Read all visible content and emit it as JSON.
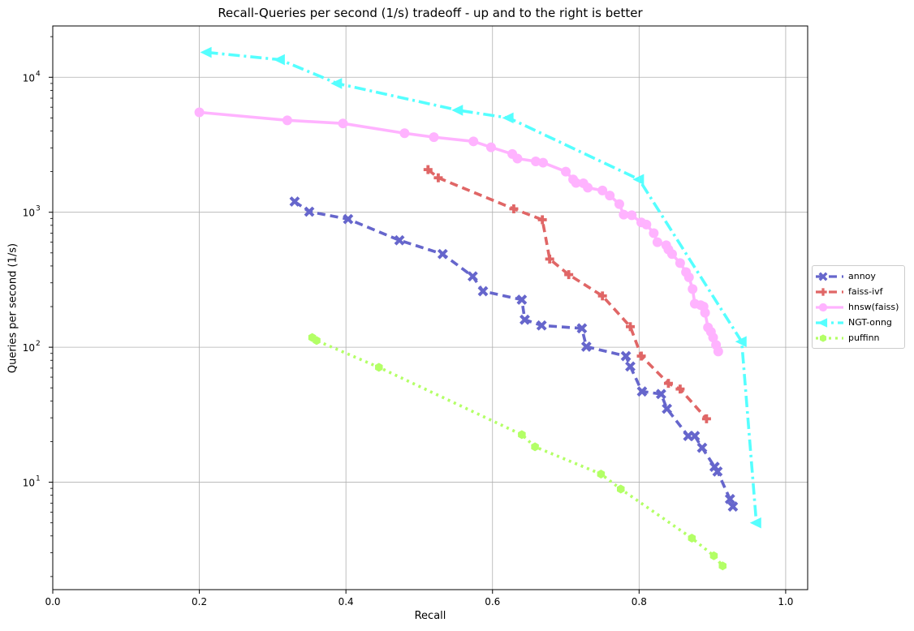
{
  "chart_data": {
    "type": "line",
    "title": "Recall-Queries per second (1/s) tradeoff - up and to the right is better",
    "xlabel": "Recall",
    "ylabel": "Queries per second (1/s)",
    "xlim": [
      0.0,
      1.03
    ],
    "ylim": [
      1.6,
      24000
    ],
    "yscale": "log",
    "grid": true,
    "legend_position": "right",
    "x_ticks": [
      {
        "value": 0.0,
        "label": "0.0"
      },
      {
        "value": 0.2,
        "label": "0.2"
      },
      {
        "value": 0.4,
        "label": "0.4"
      },
      {
        "value": 0.6,
        "label": "0.6"
      },
      {
        "value": 0.8,
        "label": "0.8"
      },
      {
        "value": 1.0,
        "label": "1.0"
      }
    ],
    "y_ticks": [
      {
        "value": 10,
        "base": "10",
        "exp": "1"
      },
      {
        "value": 100,
        "base": "10",
        "exp": "2"
      },
      {
        "value": 1000,
        "base": "10",
        "exp": "3"
      },
      {
        "value": 10000,
        "base": "10",
        "exp": "4"
      }
    ],
    "series": [
      {
        "name": "annoy",
        "color": "#6666cc",
        "marker": "x",
        "dash": "10,6",
        "points": [
          [
            0.33,
            1200
          ],
          [
            0.35,
            1010
          ],
          [
            0.403,
            890
          ],
          [
            0.473,
            620
          ],
          [
            0.532,
            490
          ],
          [
            0.573,
            335
          ],
          [
            0.587,
            260
          ],
          [
            0.64,
            225
          ],
          [
            0.644,
            160
          ],
          [
            0.667,
            145
          ],
          [
            0.722,
            138
          ],
          [
            0.728,
            101
          ],
          [
            0.782,
            86
          ],
          [
            0.788,
            72
          ],
          [
            0.804,
            47
          ],
          [
            0.83,
            45
          ],
          [
            0.838,
            35
          ],
          [
            0.867,
            22
          ],
          [
            0.876,
            22
          ],
          [
            0.886,
            18
          ],
          [
            0.903,
            13
          ],
          [
            0.907,
            12
          ],
          [
            0.924,
            7.5
          ],
          [
            0.928,
            6.6
          ]
        ]
      },
      {
        "name": "faiss-ivf",
        "color": "#e06666",
        "marker": "plus",
        "dash": "10,6",
        "points": [
          [
            0.512,
            2070
          ],
          [
            0.526,
            1800
          ],
          [
            0.629,
            1060
          ],
          [
            0.668,
            880
          ],
          [
            0.678,
            450
          ],
          [
            0.704,
            345
          ],
          [
            0.75,
            240
          ],
          [
            0.788,
            142
          ],
          [
            0.803,
            86
          ],
          [
            0.84,
            54
          ],
          [
            0.856,
            49
          ],
          [
            0.892,
            29.5
          ]
        ]
      },
      {
        "name": "hnsw(faiss)",
        "color": "#ffb3ff",
        "marker": "circle",
        "dash": "",
        "points": [
          [
            0.2,
            5500
          ],
          [
            0.32,
            4800
          ],
          [
            0.396,
            4550
          ],
          [
            0.48,
            3850
          ],
          [
            0.52,
            3600
          ],
          [
            0.574,
            3350
          ],
          [
            0.598,
            3030
          ],
          [
            0.627,
            2700
          ],
          [
            0.634,
            2500
          ],
          [
            0.659,
            2380
          ],
          [
            0.669,
            2330
          ],
          [
            0.7,
            2000
          ],
          [
            0.71,
            1750
          ],
          [
            0.714,
            1650
          ],
          [
            0.724,
            1640
          ],
          [
            0.73,
            1520
          ],
          [
            0.75,
            1450
          ],
          [
            0.76,
            1330
          ],
          [
            0.773,
            1150
          ],
          [
            0.779,
            960
          ],
          [
            0.79,
            950
          ],
          [
            0.803,
            840
          ],
          [
            0.81,
            810
          ],
          [
            0.82,
            700
          ],
          [
            0.825,
            600
          ],
          [
            0.837,
            570
          ],
          [
            0.84,
            530
          ],
          [
            0.845,
            490
          ],
          [
            0.856,
            420
          ],
          [
            0.864,
            360
          ],
          [
            0.868,
            330
          ],
          [
            0.873,
            270
          ],
          [
            0.876,
            210
          ],
          [
            0.884,
            205
          ],
          [
            0.888,
            200
          ],
          [
            0.89,
            180
          ],
          [
            0.894,
            140
          ],
          [
            0.898,
            130
          ],
          [
            0.901,
            118
          ],
          [
            0.905,
            104
          ],
          [
            0.908,
            93
          ]
        ]
      },
      {
        "name": "NGT-onng",
        "color": "#55ffff",
        "marker": "triangle-left",
        "dash": "14,5,3,5",
        "points": [
          [
            0.21,
            15300
          ],
          [
            0.31,
            13500
          ],
          [
            0.388,
            9000
          ],
          [
            0.553,
            5700
          ],
          [
            0.622,
            5000
          ],
          [
            0.8,
            1750
          ],
          [
            0.94,
            110
          ],
          [
            0.96,
            5
          ]
        ]
      },
      {
        "name": "puffinn",
        "color": "#b3ff66",
        "marker": "hexagon",
        "dash": "3,5",
        "points": [
          [
            0.354,
            118
          ],
          [
            0.36,
            112
          ],
          [
            0.445,
            71
          ],
          [
            0.64,
            22.5
          ],
          [
            0.658,
            18.3
          ],
          [
            0.748,
            11.5
          ],
          [
            0.775,
            8.9
          ],
          [
            0.872,
            3.85
          ],
          [
            0.902,
            2.85
          ],
          [
            0.914,
            2.4
          ]
        ]
      }
    ]
  }
}
